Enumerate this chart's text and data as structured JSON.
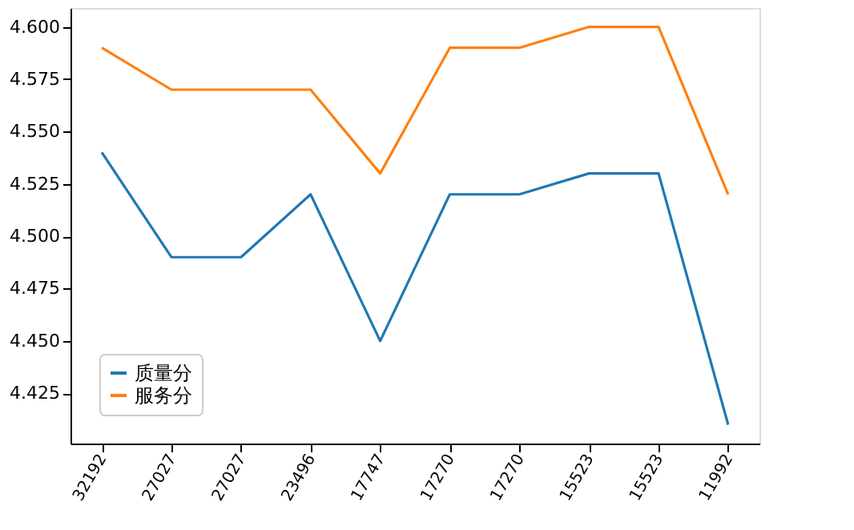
{
  "chart_data": {
    "type": "line",
    "categories": [
      "32192",
      "27027",
      "27027",
      "23496",
      "17747",
      "17270",
      "17270",
      "15523",
      "15523",
      "11992"
    ],
    "series": [
      {
        "name": "质量分",
        "color": "#1f77b4",
        "values": [
          4.54,
          4.49,
          4.49,
          4.52,
          4.45,
          4.52,
          4.52,
          4.53,
          4.53,
          4.41
        ]
      },
      {
        "name": "服务分",
        "color": "#ff7f0e",
        "values": [
          4.59,
          4.57,
          4.57,
          4.57,
          4.53,
          4.59,
          4.59,
          4.6,
          4.6,
          4.52
        ]
      }
    ],
    "ylim": [
      4.401,
      4.609
    ],
    "yticks": [
      {
        "value": 4.425,
        "label": "4.425"
      },
      {
        "value": 4.45,
        "label": "4.450"
      },
      {
        "value": 4.475,
        "label": "4.475"
      },
      {
        "value": 4.5,
        "label": "4.500"
      },
      {
        "value": 4.525,
        "label": "4.525"
      },
      {
        "value": 4.55,
        "label": "4.550"
      },
      {
        "value": 4.575,
        "label": "4.575"
      },
      {
        "value": 4.6,
        "label": "4.600"
      }
    ],
    "grid": false,
    "legend": "bottom left",
    "marker": "none",
    "line_style": "solid"
  }
}
